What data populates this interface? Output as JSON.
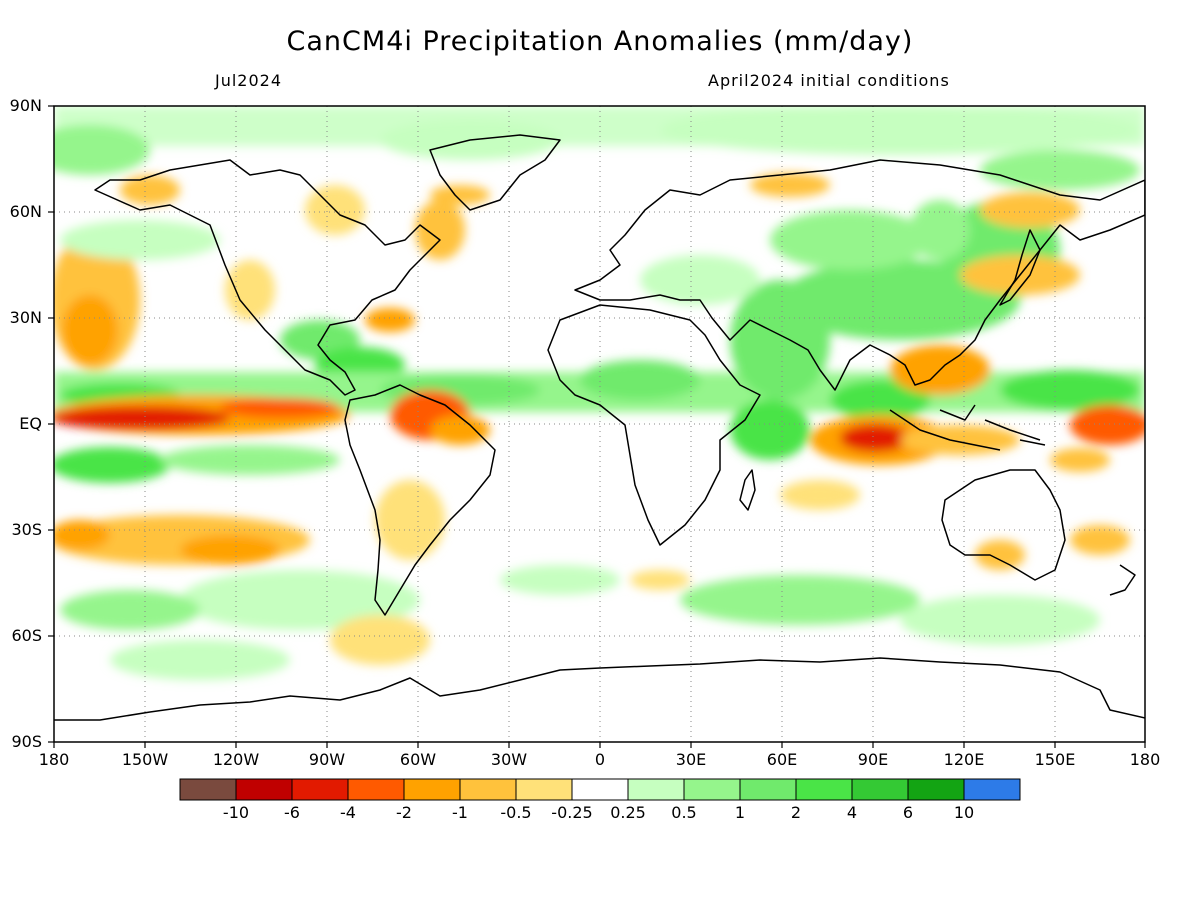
{
  "header": {
    "title": "CanCM4i Precipitation Anomalies (mm/day)",
    "left_subtitle": "Jul2024",
    "right_subtitle": "April2024 initial conditions"
  },
  "axes": {
    "y_labels": [
      "90N",
      "60N",
      "30N",
      "EQ",
      "30S",
      "60S",
      "90S"
    ],
    "x_labels": [
      "180",
      "150W",
      "120W",
      "90W",
      "60W",
      "30W",
      "0",
      "30E",
      "60E",
      "90E",
      "120E",
      "150E",
      "180"
    ]
  },
  "colorbar": {
    "colors": [
      "#7a4a3e",
      "#c00000",
      "#e21a00",
      "#ff5a00",
      "#ffa200",
      "#ffc23c",
      "#ffe179",
      "#ffffff",
      "#c6ffc0",
      "#95f58c",
      "#70ea6c",
      "#4ae447",
      "#34c934",
      "#13a413",
      "#2d7be8"
    ],
    "labels": [
      "-10",
      "-6",
      "-4",
      "-2",
      "-1",
      "-0.5",
      "-0.25",
      "0.25",
      "0.5",
      "1",
      "2",
      "4",
      "6",
      "10"
    ]
  },
  "colors": {
    "ocean_land_background": "#ffffff",
    "coastline": "#000000",
    "gridline": "#888888"
  }
}
